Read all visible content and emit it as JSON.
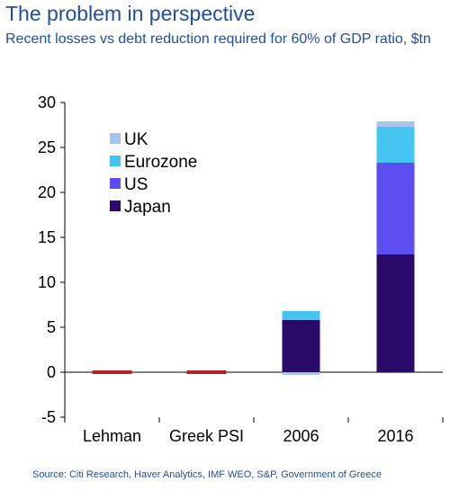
{
  "title": "The problem in perspective",
  "subtitle": "Recent losses vs debt reduction required for 60% of GDP ratio, $tn",
  "source": "Source: Citi Research, Haver Analytics, IMF WEO, S&P, Government of Greece",
  "chart_data": {
    "type": "bar",
    "stacked": true,
    "title": "The problem in perspective",
    "subtitle": "Recent losses vs debt reduction required for 60% of GDP ratio, $tn",
    "categories": [
      "Lehman",
      "Greek PSI",
      "2006",
      "2016"
    ],
    "ylim": [
      -5,
      30
    ],
    "yticks": [
      -5,
      0,
      5,
      10,
      15,
      20,
      25,
      30
    ],
    "legend_position": "top-left",
    "series": [
      {
        "name": "Japan",
        "color": "#2a0a6b",
        "values": [
          0,
          0,
          5.8,
          13.1
        ]
      },
      {
        "name": "US",
        "color": "#5b4df0",
        "values": [
          0,
          0,
          0,
          10.2
        ]
      },
      {
        "name": "Eurozone",
        "color": "#45c4f2",
        "values": [
          0,
          0,
          1.0,
          4.0
        ]
      },
      {
        "name": "UK",
        "color": "#a9c4ea",
        "values": [
          0,
          0,
          -0.3,
          0.6
        ]
      }
    ],
    "losses": {
      "color": "#b82222",
      "values": [
        0.1,
        0.1,
        null,
        null
      ]
    }
  }
}
